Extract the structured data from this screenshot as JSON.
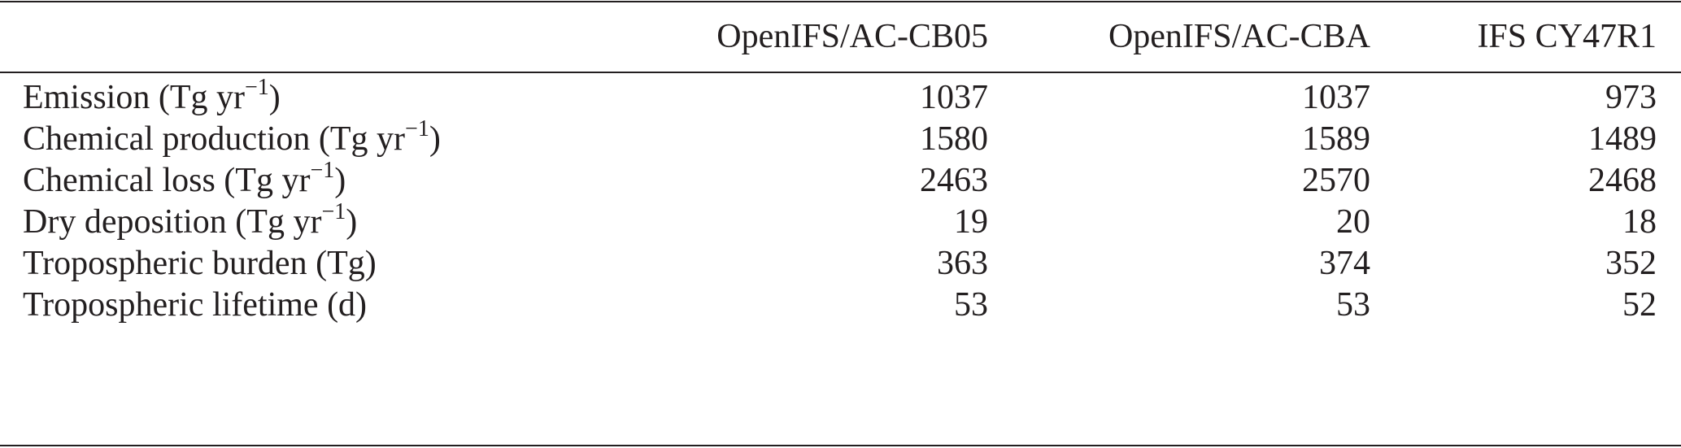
{
  "table": {
    "columns": [
      "",
      "OpenIFS/AC-CB05",
      "OpenIFS/AC-CBA",
      "IFS CY47R1"
    ],
    "rows": [
      {
        "label": "Emission (Tg yr",
        "sup": "−1",
        "close": ")",
        "values": [
          "1037",
          "1037",
          "973"
        ]
      },
      {
        "label": "Chemical production (Tg yr",
        "sup": "−1",
        "close": ")",
        "values": [
          "1580",
          "1589",
          "1489"
        ]
      },
      {
        "label": "Chemical loss (Tg yr",
        "sup": "−1",
        "close": ")",
        "values": [
          "2463",
          "2570",
          "2468"
        ]
      },
      {
        "label": "Dry deposition (Tg yr",
        "sup": "−1",
        "close": ")",
        "values": [
          "19",
          "20",
          "18"
        ]
      },
      {
        "label": "Tropospheric burden (Tg)",
        "sup": "",
        "close": "",
        "values": [
          "363",
          "374",
          "352"
        ]
      },
      {
        "label": "Tropospheric lifetime (d)",
        "sup": "",
        "close": "",
        "values": [
          "53",
          "53",
          "52"
        ]
      }
    ]
  }
}
